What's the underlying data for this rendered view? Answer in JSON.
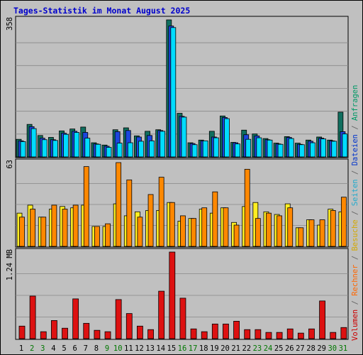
{
  "chart_data": [
    {
      "type": "bar",
      "title": "Tages-Statistik im Monat August 2025",
      "ymax_label": "358",
      "categories": [
        "1",
        "2",
        "3",
        "4",
        "5",
        "6",
        "7",
        "8",
        "9",
        "10",
        "11",
        "12",
        "13",
        "14",
        "15",
        "16",
        "17",
        "18",
        "19",
        "20",
        "21",
        "22",
        "23",
        "24",
        "25",
        "26",
        "27",
        "28",
        "29",
        "30",
        "31"
      ],
      "weekend_days": [
        "2",
        "3",
        "9",
        "10",
        "16",
        "17",
        "23",
        "24",
        "30",
        "31"
      ],
      "series": [
        {
          "name": "Anfragen",
          "values": [
            46,
            85,
            56,
            51,
            68,
            73,
            78,
            37,
            31,
            71,
            76,
            55,
            67,
            71,
            358,
            114,
            37,
            44,
            67,
            107,
            38,
            70,
            60,
            48,
            36,
            53,
            36,
            44,
            52,
            44,
            117
          ]
        },
        {
          "name": "Dateien",
          "values": [
            42,
            79,
            49,
            45,
            62,
            67,
            64,
            34,
            28,
            66,
            69,
            52,
            56,
            69,
            342,
            106,
            35,
            42,
            52,
            103,
            37,
            58,
            55,
            45,
            34,
            51,
            33,
            41,
            49,
            42,
            66
          ]
        },
        {
          "name": "Seiten",
          "values": [
            40,
            74,
            45,
            43,
            59,
            64,
            49,
            33,
            25,
            36,
            37,
            41,
            42,
            67,
            338,
            104,
            32,
            42,
            50,
            100,
            34,
            46,
            50,
            44,
            33,
            48,
            32,
            37,
            47,
            41,
            60
          ]
        }
      ]
    },
    {
      "type": "bar",
      "ymax_label": "63",
      "series": [
        {
          "name": "Besuche",
          "values": [
            25,
            31,
            22,
            28,
            30,
            29,
            31,
            15,
            15,
            32,
            23,
            26,
            27,
            27,
            33,
            19,
            21,
            28,
            25,
            29,
            18,
            30,
            33,
            26,
            24,
            32,
            14,
            20,
            16,
            28,
            26
          ]
        },
        {
          "name": "Rechner",
          "values": [
            22,
            28,
            22,
            31,
            28,
            31,
            60,
            15,
            17,
            63,
            50,
            22,
            39,
            52,
            33,
            23,
            21,
            29,
            41,
            29,
            16,
            58,
            21,
            25,
            23,
            29,
            14,
            20,
            20,
            27,
            37
          ]
        }
      ]
    },
    {
      "type": "bar",
      "ymax_label": "1.24 MB",
      "series": [
        {
          "name": "Volumen",
          "values": [
            0.18,
            0.61,
            0.1,
            0.26,
            0.15,
            0.57,
            0.22,
            0.12,
            0.1,
            0.56,
            0.36,
            0.18,
            0.13,
            0.68,
            1.24,
            0.58,
            0.14,
            0.1,
            0.21,
            0.21,
            0.25,
            0.13,
            0.13,
            0.09,
            0.09,
            0.14,
            0.08,
            0.14,
            0.54,
            0.09,
            0.16
          ]
        }
      ]
    }
  ],
  "side_legend": [
    {
      "text": "Volumen",
      "color": "#cc0000"
    },
    {
      "text": " / ",
      "color": "#666666"
    },
    {
      "text": "Rechner",
      "color": "#ff6600"
    },
    {
      "text": " / ",
      "color": "#666666"
    },
    {
      "text": "Besuche",
      "color": "#d4a800"
    },
    {
      "text": " / ",
      "color": "#666666"
    },
    {
      "text": "Seiten",
      "color": "#22aacc"
    },
    {
      "text": " / ",
      "color": "#666666"
    },
    {
      "text": "Dateien",
      "color": "#0033cc"
    },
    {
      "text": " / ",
      "color": "#666666"
    },
    {
      "text": "Anfragen",
      "color": "#009966"
    }
  ],
  "colors": {
    "background": "#c0c0c0",
    "title": "#0000cc",
    "weekend_label": "#007700",
    "weekday_label": "#000000",
    "Anfragen": "#106f5f",
    "Dateien": "#1b46de",
    "Seiten": "#00dcff",
    "Besuche": "#ffee22",
    "Rechner": "#ff8800",
    "Volumen": "#dd1111"
  }
}
